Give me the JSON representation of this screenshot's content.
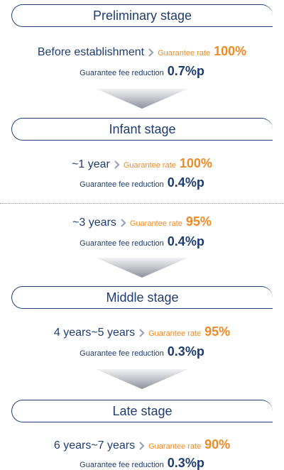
{
  "stages": [
    {
      "title": "Preliminary stage",
      "items": [
        {
          "period": "Before establishment",
          "rate_label": "Guarantee rate",
          "rate": "100%",
          "fee_label": "Guarantee fee reduction",
          "fee": "0.7%p"
        }
      ]
    },
    {
      "title": "Infant stage",
      "items": [
        {
          "period": "~1 year",
          "rate_label": "Guarantee rate",
          "rate": "100%",
          "fee_label": "Guarantee fee reduction",
          "fee": "0.4%p"
        },
        {
          "period": "~3 years",
          "rate_label": "Guarantee rate",
          "rate": "95%",
          "fee_label": "Guarantee fee reduction",
          "fee": "0.4%p"
        }
      ]
    },
    {
      "title": "Middle stage",
      "items": [
        {
          "period": "4 years~5 years",
          "rate_label": "Guarantee rate",
          "rate": "95%",
          "fee_label": "Guarantee fee reduction",
          "fee": "0.3%p"
        }
      ]
    },
    {
      "title": "Late stage",
      "items": [
        {
          "period": "6 years~7 years",
          "rate_label": "Guarantee rate",
          "rate": "90%",
          "fee_label": "Guarantee fee reduction",
          "fee": "0.3%p"
        }
      ]
    }
  ]
}
